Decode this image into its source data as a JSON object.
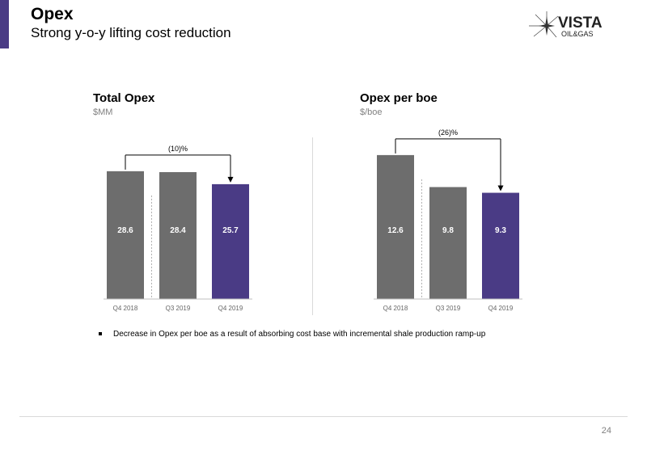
{
  "header": {
    "title": "Opex",
    "subtitle": "Strong y-o-y lifting cost reduction"
  },
  "logo": {
    "name": "VISTA",
    "tagline": "OIL&GAS"
  },
  "chart_data": [
    {
      "type": "bar",
      "title": "Total Opex",
      "unit": "$MM",
      "categories": [
        "Q4 2018",
        "Q3 2019",
        "Q4 2019"
      ],
      "values": [
        28.6,
        28.4,
        25.7
      ],
      "value_labels": [
        "28.6",
        "28.4",
        "25.7"
      ],
      "colors": [
        "#6d6d6d",
        "#6d6d6d",
        "#4a3b85"
      ],
      "ylim": [
        0,
        34
      ],
      "annotation": {
        "text": "(10)%",
        "from_index": 0,
        "to_index": 2
      }
    },
    {
      "type": "bar",
      "title": "Opex per boe",
      "unit": "$/boe",
      "categories": [
        "Q4 2018",
        "Q3 2019",
        "Q4 2019"
      ],
      "values": [
        12.6,
        9.8,
        9.3
      ],
      "value_labels": [
        "12.6",
        "9.8",
        "9.3"
      ],
      "colors": [
        "#6d6d6d",
        "#6d6d6d",
        "#4a3b85"
      ],
      "ylim": [
        0,
        13.3
      ],
      "annotation": {
        "text": "(26)%",
        "from_index": 0,
        "to_index": 2
      }
    }
  ],
  "bullets": [
    "Decrease in Opex per boe as a result of absorbing cost base with incremental shale production ramp-up"
  ],
  "footer": {
    "page_number": "24"
  }
}
